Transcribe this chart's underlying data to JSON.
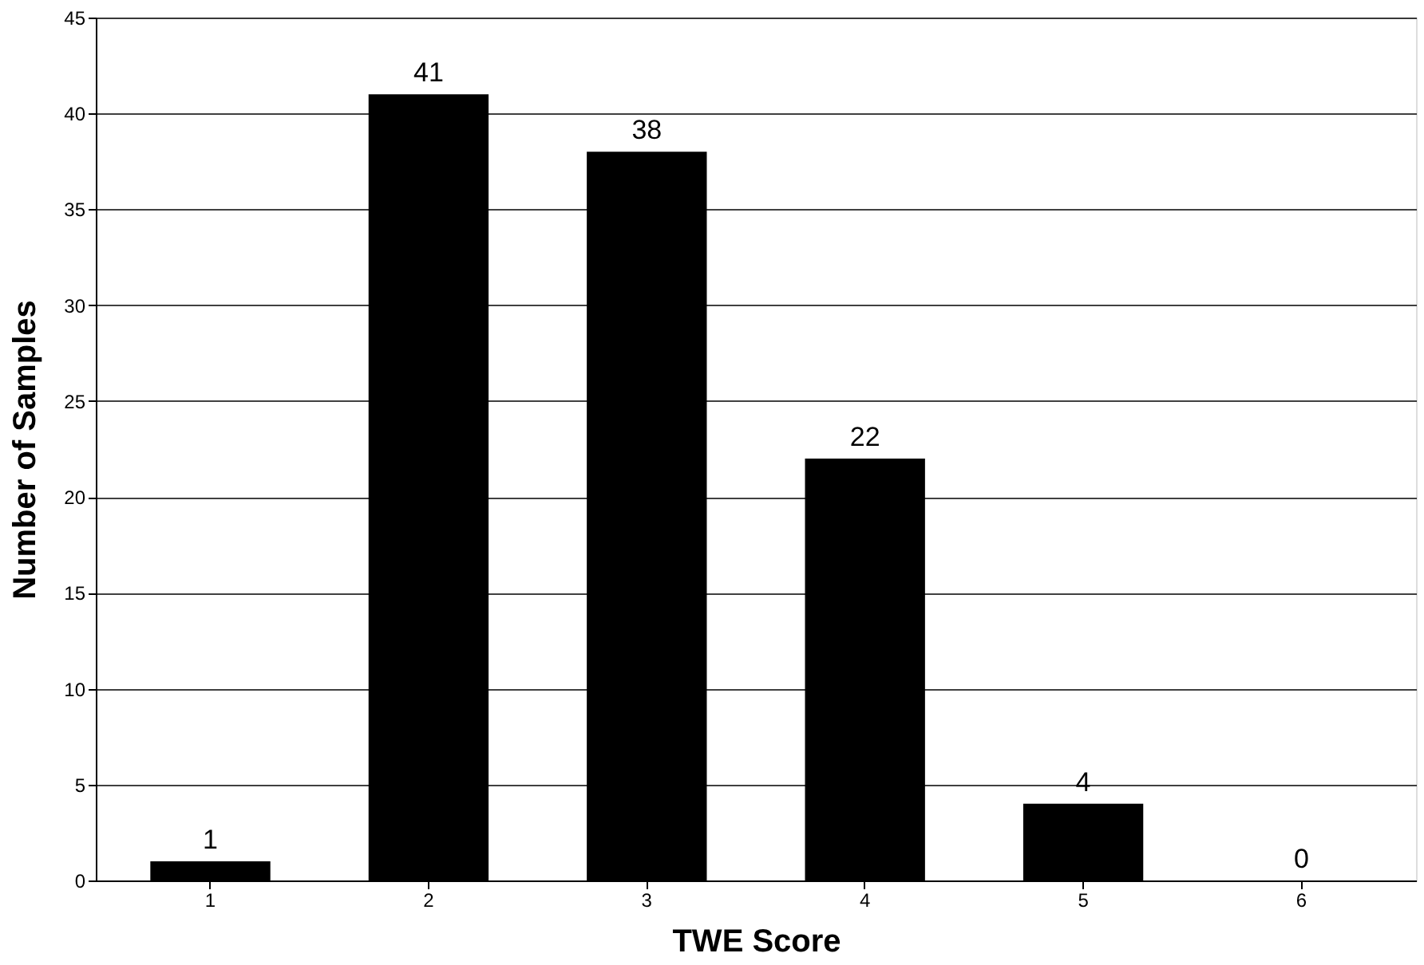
{
  "chart_data": {
    "type": "bar",
    "xlabel": "TWE Score",
    "ylabel": "Number of Samples",
    "categories": [
      "1",
      "2",
      "3",
      "4",
      "5",
      "6"
    ],
    "values": [
      1,
      41,
      38,
      22,
      4,
      0
    ],
    "color": "#000000",
    "ylim": [
      0,
      45
    ],
    "yticks": [
      0,
      5,
      10,
      15,
      20,
      25,
      30,
      35,
      40,
      45
    ],
    "grid": "y",
    "data_labels": true
  }
}
